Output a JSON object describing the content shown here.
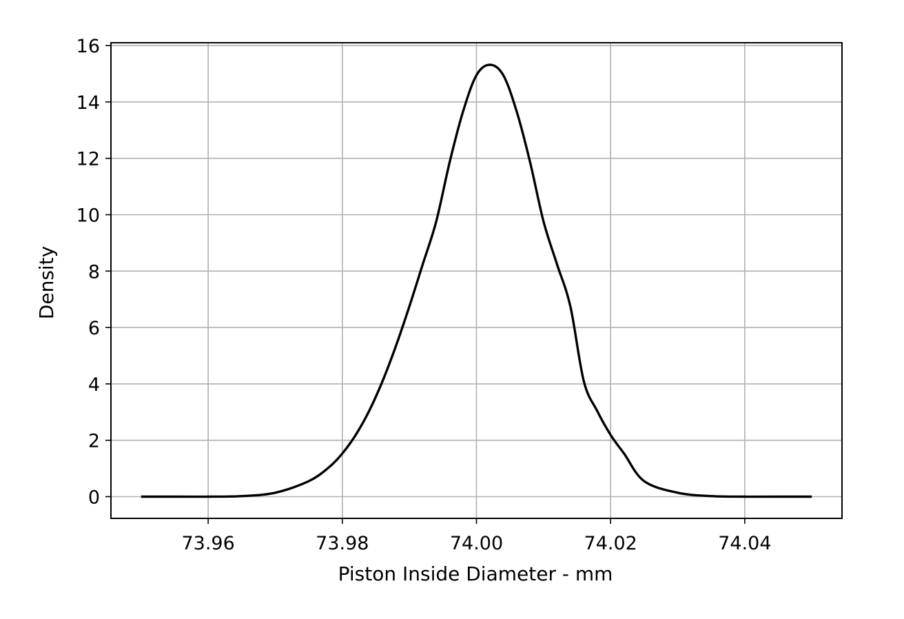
{
  "chart_data": {
    "type": "line",
    "title": "",
    "xlabel": "Piston Inside Diameter - mm",
    "ylabel": "Density",
    "xlim": [
      73.9455,
      74.0545
    ],
    "ylim": [
      -0.77,
      16.1
    ],
    "xticks": [
      73.96,
      73.98,
      74.0,
      74.02,
      74.04
    ],
    "xtick_labels": [
      "73.96",
      "73.98",
      "74.00",
      "74.02",
      "74.04"
    ],
    "yticks": [
      0,
      2,
      4,
      6,
      8,
      10,
      12,
      14,
      16
    ],
    "ytick_labels": [
      "0",
      "2",
      "4",
      "6",
      "8",
      "10",
      "12",
      "14",
      "16"
    ],
    "grid": true,
    "legend": "none",
    "series": [
      {
        "line_color": "#000000",
        "x": [
          73.95,
          73.955,
          73.96,
          73.965,
          73.97,
          73.975,
          73.978,
          73.98,
          73.982,
          73.984,
          73.986,
          73.988,
          73.99,
          73.992,
          73.994,
          73.996,
          73.998,
          74.0,
          74.002,
          74.004,
          74.006,
          74.008,
          74.01,
          74.012,
          74.014,
          74.016,
          74.018,
          74.02,
          74.022,
          74.025,
          74.03,
          74.035,
          74.04,
          74.045,
          74.05
        ],
        "y": [
          0.0,
          0.0,
          0.0,
          0.02,
          0.14,
          0.55,
          1.04,
          1.53,
          2.19,
          3.04,
          4.1,
          5.35,
          6.75,
          8.25,
          9.76,
          11.86,
          13.66,
          14.95,
          15.32,
          14.95,
          13.66,
          11.86,
          9.76,
          8.25,
          6.75,
          4.1,
          3.04,
          2.19,
          1.53,
          0.55,
          0.14,
          0.02,
          0.0,
          0.0,
          0.0
        ]
      }
    ]
  }
}
